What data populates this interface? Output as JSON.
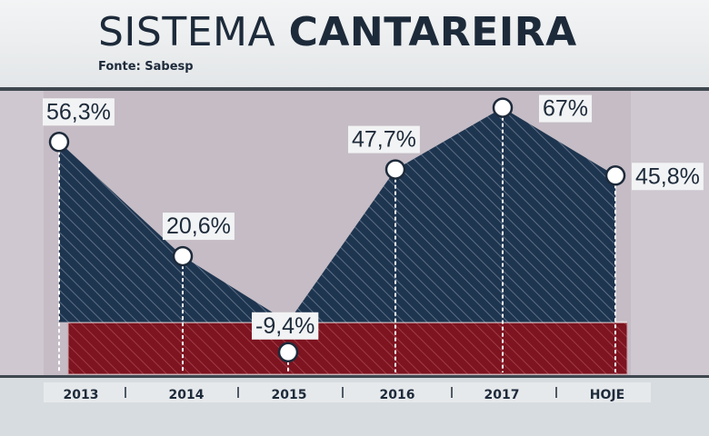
{
  "header": {
    "title_light": "SISTEMA",
    "title_bold": "CANTAREIRA",
    "source": "Fonte: Sabesp"
  },
  "colors": {
    "area": "#1e3550",
    "negative_band": "#7d1420",
    "plot_bg": "#c5bcc5",
    "text": "#1d2a3a"
  },
  "chart_data": {
    "type": "area",
    "title": "SISTEMA CANTAREIRA",
    "subtitle": "Fonte: Sabesp",
    "categories": [
      "2013",
      "2014",
      "2015",
      "2016",
      "2017",
      "HOJE"
    ],
    "values": [
      56.3,
      20.6,
      -9.4,
      47.7,
      67,
      45.8
    ],
    "value_labels": [
      "56,3%",
      "20,6%",
      "-9,4%",
      "47,7%",
      "67%",
      "45,8%"
    ],
    "ylim": [
      -14,
      70
    ],
    "grid": false
  }
}
